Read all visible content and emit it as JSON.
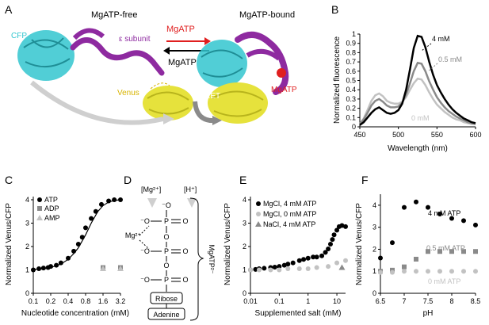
{
  "colors": {
    "cfp": "#33c6cf",
    "epsilon": "#8e2aa0",
    "venus": "#e6e23c",
    "mgatp": "#e01f1f",
    "black": "#000000",
    "gray_dark": "#8a8a8a",
    "gray_light": "#c2c2c2"
  },
  "panelA": {
    "label": "A",
    "free_title": "MgATP-free",
    "bound_title": "MgATP-bound",
    "cfp": "CFP",
    "epsilon": "ε subunit",
    "venus": "Venus",
    "arrow_in": "MgATP",
    "arrow_out": "MgATP",
    "fret": "FRET",
    "ligand": "MgATP"
  },
  "panelD": {
    "label": "D",
    "mg_ion": "[Mg²⁺]",
    "h_ion": "[H⁺]",
    "mg_center": "Mg²⁺",
    "o_minus": "⁻O",
    "o": "O",
    "p": "P",
    "ribose": "Ribose",
    "adenine": "Adenine",
    "side_label": "MgATP²⁻"
  },
  "chart_data": [
    {
      "panel": "B",
      "type": "line",
      "xlabel": "Wavelength (nm)",
      "ylabel": "Normalized fluorescence",
      "xlim": [
        450,
        600
      ],
      "ylim": [
        0,
        1
      ],
      "xticks": [
        "450",
        "500",
        "550",
        "600"
      ],
      "yticks": [
        "0",
        "0.1",
        "0.2",
        "0.3",
        "0.4",
        "0.5",
        "0.6",
        "0.7",
        "0.8",
        "0.9",
        "1"
      ],
      "x": [
        450,
        455,
        460,
        465,
        470,
        475,
        480,
        485,
        490,
        495,
        500,
        505,
        510,
        515,
        520,
        525,
        530,
        535,
        540,
        545,
        550,
        555,
        560,
        565,
        570,
        575,
        580,
        585,
        590,
        595,
        600
      ],
      "series": [
        {
          "name": "4 mM",
          "values": [
            0.02,
            0.05,
            0.1,
            0.15,
            0.19,
            0.21,
            0.18,
            0.15,
            0.14,
            0.15,
            0.18,
            0.25,
            0.4,
            0.62,
            0.85,
            0.98,
            0.97,
            0.86,
            0.7,
            0.56,
            0.45,
            0.37,
            0.3,
            0.24,
            0.19,
            0.15,
            0.12,
            0.09,
            0.07,
            0.05,
            0.04
          ]
        },
        {
          "name": "0.5 mM",
          "values": [
            0.03,
            0.08,
            0.15,
            0.23,
            0.28,
            0.3,
            0.27,
            0.23,
            0.21,
            0.21,
            0.22,
            0.26,
            0.35,
            0.47,
            0.6,
            0.69,
            0.68,
            0.6,
            0.49,
            0.4,
            0.32,
            0.26,
            0.21,
            0.17,
            0.14,
            0.11,
            0.09,
            0.07,
            0.05,
            0.04,
            0.03
          ]
        },
        {
          "name": "0 mM",
          "values": [
            0.03,
            0.09,
            0.18,
            0.28,
            0.34,
            0.36,
            0.33,
            0.28,
            0.26,
            0.25,
            0.25,
            0.27,
            0.32,
            0.4,
            0.47,
            0.52,
            0.51,
            0.45,
            0.37,
            0.3,
            0.24,
            0.2,
            0.16,
            0.13,
            0.1,
            0.08,
            0.07,
            0.05,
            0.04,
            0.03,
            0.03
          ]
        }
      ]
    },
    {
      "panel": "C",
      "type": "scatter",
      "xlabel": "Nucleotide concentration (mM)",
      "ylabel": "Normalized Venus/CFP",
      "scale_x": "log",
      "xlim": [
        0.1,
        3.2
      ],
      "ylim": [
        0,
        4
      ],
      "xticks": [
        "0.1",
        "0.2",
        "0.4",
        "0.8",
        "1.6",
        "3.2"
      ],
      "yticks": [
        "0",
        "1",
        "2",
        "3",
        "4"
      ],
      "series": [
        {
          "name": "ATP",
          "x": [
            0.1,
            0.125,
            0.15,
            0.18,
            0.2,
            0.25,
            0.3,
            0.4,
            0.5,
            0.6,
            0.7,
            0.8,
            1.0,
            1.2,
            1.5,
            2.0,
            2.5,
            3.2
          ],
          "y": [
            1.0,
            1.05,
            1.08,
            1.1,
            1.15,
            1.2,
            1.3,
            1.5,
            1.8,
            2.1,
            2.4,
            2.8,
            3.2,
            3.5,
            3.8,
            3.95,
            4.0,
            4.0
          ]
        },
        {
          "name": "ADP",
          "x": [
            1.6,
            3.2
          ],
          "y": [
            1.1,
            1.1
          ]
        },
        {
          "name": "AMP",
          "x": [
            1.6,
            3.2
          ],
          "y": [
            1.05,
            1.05
          ]
        }
      ],
      "fit": {
        "x": [
          0.1,
          0.15,
          0.2,
          0.3,
          0.4,
          0.5,
          0.6,
          0.8,
          1.0,
          1.3,
          1.6,
          2.0,
          2.5,
          3.2
        ],
        "y": [
          1.02,
          1.05,
          1.1,
          1.25,
          1.45,
          1.7,
          1.95,
          2.5,
          3.0,
          3.5,
          3.75,
          3.9,
          3.97,
          4.0
        ]
      }
    },
    {
      "panel": "E",
      "type": "scatter",
      "xlabel": "Supplemented salt (mM)",
      "ylabel": "Normalized Venus/CFP",
      "scale_x": "log",
      "xlim": [
        0.01,
        20
      ],
      "ylim": [
        0,
        4
      ],
      "xticks": [
        "0.01",
        "0.1",
        "1",
        "10"
      ],
      "yticks": [
        "0",
        "1",
        "2",
        "3",
        "4"
      ],
      "series": [
        {
          "name": "MgCl, 4 mM ATP",
          "x": [
            0.01,
            0.015,
            0.02,
            0.03,
            0.05,
            0.07,
            0.1,
            0.15,
            0.2,
            0.3,
            0.5,
            0.7,
            1.0,
            1.5,
            2.0,
            3.0,
            4.0,
            5.0,
            6.0,
            7.0,
            8.0,
            10.0,
            12.0,
            15.0,
            20.0
          ],
          "y": [
            1.0,
            1.02,
            1.05,
            1.07,
            1.1,
            1.12,
            1.15,
            1.2,
            1.25,
            1.3,
            1.4,
            1.45,
            1.5,
            1.55,
            1.55,
            1.6,
            1.75,
            1.9,
            2.1,
            2.3,
            2.5,
            2.7,
            2.85,
            2.9,
            2.85
          ]
        },
        {
          "name": "MgCl, 0 mM ATP",
          "x": [
            0.01,
            0.02,
            0.05,
            0.1,
            0.2,
            0.5,
            1.0,
            2.0,
            5.0,
            10.0,
            20.0
          ],
          "y": [
            1.0,
            1.0,
            1.0,
            1.0,
            1.05,
            1.05,
            1.05,
            1.1,
            1.15,
            1.3,
            1.4
          ]
        },
        {
          "name": "NaCl, 4 mM ATP",
          "x": [
            15.0
          ],
          "y": [
            1.1
          ]
        }
      ]
    },
    {
      "panel": "F",
      "type": "scatter",
      "xlabel": "pH",
      "ylabel": "Normalized Venus/CFP",
      "xlim": [
        6.5,
        8.5
      ],
      "ylim": [
        0,
        4.5
      ],
      "xticks": [
        "6.5",
        "7",
        "7.5",
        "8",
        "8.5"
      ],
      "yticks": [
        "0",
        "1",
        "2",
        "3",
        "4"
      ],
      "series": [
        {
          "name": "4 mM ATP",
          "x": [
            6.5,
            6.75,
            7.0,
            7.25,
            7.5,
            7.75,
            8.0,
            8.25,
            8.5
          ],
          "y": [
            1.6,
            2.3,
            3.9,
            4.15,
            3.9,
            3.6,
            3.4,
            3.3,
            3.1
          ]
        },
        {
          "name": "0.5 mM ATP",
          "x": [
            6.5,
            6.75,
            7.0,
            7.25,
            7.5,
            7.75,
            8.0,
            8.25,
            8.5
          ],
          "y": [
            1.0,
            1.05,
            1.2,
            1.55,
            1.9,
            1.9,
            1.9,
            1.9,
            1.9
          ]
        },
        {
          "name": "0 mM ATP",
          "x": [
            6.5,
            6.75,
            7.0,
            7.25,
            7.5,
            7.75,
            8.0,
            8.25,
            8.5
          ],
          "y": [
            0.95,
            0.95,
            1.0,
            1.0,
            1.0,
            1.0,
            1.0,
            1.0,
            1.0
          ]
        }
      ]
    }
  ]
}
